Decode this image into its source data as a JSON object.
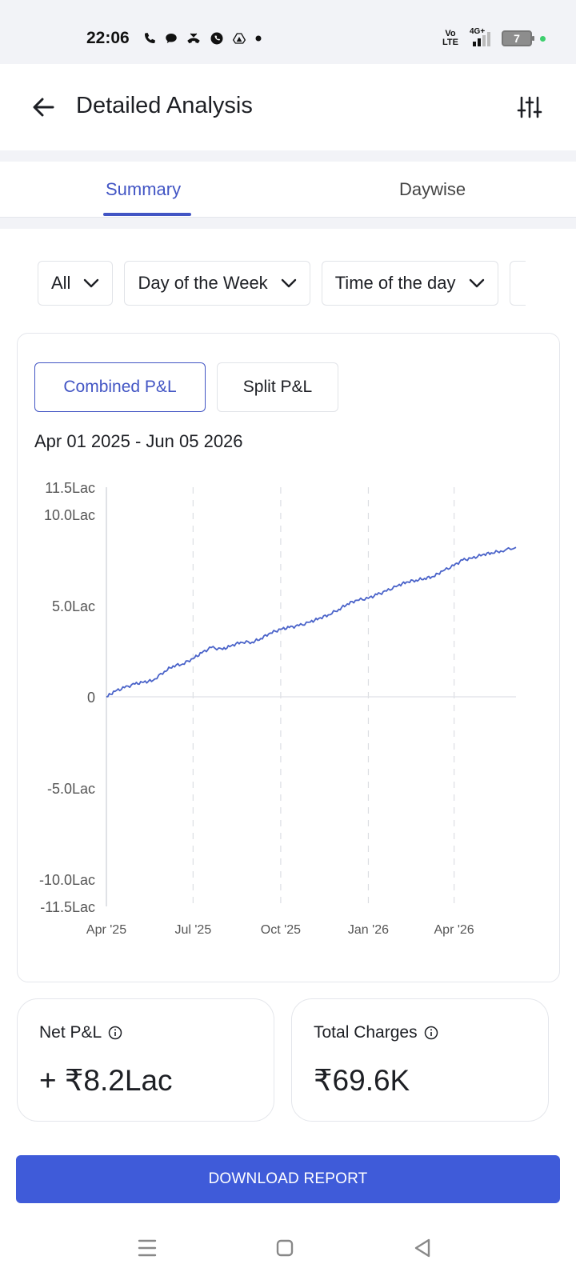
{
  "status_bar": {
    "time": "22:06",
    "volte": "Vo LTE",
    "network": "4G+",
    "battery": "7",
    "icons": [
      "phone-icon",
      "chat-icon",
      "missed-call-icon",
      "whatsapp-icon",
      "drive-icon",
      "dot-icon"
    ]
  },
  "header": {
    "title": "Detailed Analysis",
    "back_icon": "arrow-left-icon",
    "filter_icon": "sliders-icon"
  },
  "tabs": [
    {
      "label": "Summary",
      "active": true
    },
    {
      "label": "Daywise",
      "active": false
    }
  ],
  "filters": [
    {
      "label": "All"
    },
    {
      "label": "Day of the Week"
    },
    {
      "label": "Time of the day"
    }
  ],
  "pnl_toggle": {
    "combined": "Combined P&L",
    "split": "Split P&L",
    "active": "combined"
  },
  "date_range": "Apr 01 2025 - Jun 05 2026",
  "chart_data": {
    "type": "line",
    "title": "",
    "xlabel": "",
    "ylabel": "",
    "x_ticks": [
      "Apr '25",
      "Jul '25",
      "Oct '25",
      "Jan '26",
      "Apr '26"
    ],
    "y_ticks": [
      {
        "value": 11.5,
        "label": "11.5Lac"
      },
      {
        "value": 10,
        "label": "10.0Lac"
      },
      {
        "value": 5,
        "label": "5.0Lac"
      },
      {
        "value": 0,
        "label": "0"
      },
      {
        "value": -5,
        "label": "-5.0Lac"
      },
      {
        "value": -10,
        "label": "-10.0Lac"
      },
      {
        "value": -11.5,
        "label": "-11.5Lac"
      }
    ],
    "ylim": [
      -11.5,
      11.5
    ],
    "x_range": [
      "2025-04-01",
      "2026-06-05"
    ],
    "series": [
      {
        "color": "#4a63c9",
        "points": [
          [
            "2025-04-01",
            0.0
          ],
          [
            "2025-04-10",
            0.3
          ],
          [
            "2025-04-20",
            0.5
          ],
          [
            "2025-05-01",
            0.7
          ],
          [
            "2025-05-10",
            0.8
          ],
          [
            "2025-05-20",
            0.9
          ],
          [
            "2025-06-01",
            1.4
          ],
          [
            "2025-06-10",
            1.7
          ],
          [
            "2025-06-20",
            1.8
          ],
          [
            "2025-07-01",
            2.1
          ],
          [
            "2025-07-10",
            2.4
          ],
          [
            "2025-07-20",
            2.7
          ],
          [
            "2025-08-01",
            2.6
          ],
          [
            "2025-08-10",
            2.8
          ],
          [
            "2025-08-20",
            3.0
          ],
          [
            "2025-09-01",
            3.0
          ],
          [
            "2025-09-10",
            3.2
          ],
          [
            "2025-09-20",
            3.5
          ],
          [
            "2025-10-01",
            3.7
          ],
          [
            "2025-10-10",
            3.8
          ],
          [
            "2025-10-20",
            3.9
          ],
          [
            "2025-11-01",
            4.1
          ],
          [
            "2025-11-10",
            4.3
          ],
          [
            "2025-11-20",
            4.5
          ],
          [
            "2025-12-01",
            4.8
          ],
          [
            "2025-12-10",
            5.1
          ],
          [
            "2025-12-20",
            5.3
          ],
          [
            "2026-01-01",
            5.4
          ],
          [
            "2026-01-10",
            5.6
          ],
          [
            "2026-01-20",
            5.8
          ],
          [
            "2026-02-01",
            6.1
          ],
          [
            "2026-02-10",
            6.3
          ],
          [
            "2026-02-20",
            6.4
          ],
          [
            "2026-03-01",
            6.5
          ],
          [
            "2026-03-10",
            6.6
          ],
          [
            "2026-03-20",
            6.9
          ],
          [
            "2026-04-01",
            7.2
          ],
          [
            "2026-04-10",
            7.5
          ],
          [
            "2026-04-20",
            7.6
          ],
          [
            "2026-05-01",
            7.8
          ],
          [
            "2026-05-10",
            7.9
          ],
          [
            "2026-05-20",
            8.0
          ],
          [
            "2026-06-05",
            8.2
          ]
        ]
      }
    ],
    "grid": "vertical-dashed",
    "legend": "none"
  },
  "stats": {
    "net_pnl": {
      "label": "Net P&L",
      "value": "+ ₹8.2Lac"
    },
    "total_charges": {
      "label": "Total Charges",
      "value": "₹69.6K"
    }
  },
  "download_button": "DOWNLOAD REPORT",
  "nav": [
    "recents-icon",
    "home-icon",
    "back-icon"
  ]
}
